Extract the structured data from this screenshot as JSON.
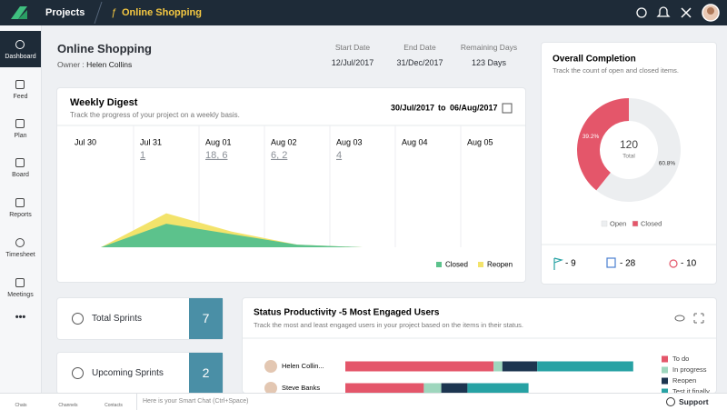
{
  "topbar": {
    "projects": "Projects",
    "project": "Online Shopping"
  },
  "sidebar": {
    "items": [
      "Dashboard",
      "Feed",
      "Plan",
      "Board",
      "Reports",
      "Timesheet",
      "Meetings"
    ],
    "more": "•••"
  },
  "header": {
    "title": "Online Shopping",
    "owner_label": "Owner :",
    "owner": "Helen Collins",
    "stats": [
      {
        "label": "Start Date",
        "value": "12/Jul/2017"
      },
      {
        "label": "End Date",
        "value": "31/Dec/2017"
      },
      {
        "label": "Remaining Days",
        "value": "123 Days"
      }
    ]
  },
  "chart_data": [
    {
      "type": "area",
      "title": "Weekly Digest",
      "subtitle": "Track the progress of your project on a weekly basis.",
      "range_start": "30/Jul/2017",
      "range_to": "to",
      "range_end": "06/Aug/2017",
      "categories": [
        "Jul 30",
        "Jul 31",
        "Aug 01",
        "Aug 02",
        "Aug 03",
        "Aug 04",
        "Aug 05"
      ],
      "day_counts": [
        null,
        "1",
        "18, 6",
        "6, 2",
        "4",
        null,
        null
      ],
      "series": [
        {
          "name": "Closed",
          "color": "#5cc28c",
          "values": [
            0,
            9,
            5,
            1,
            0,
            0,
            0
          ]
        },
        {
          "name": "Reopen",
          "color": "#f3e36b",
          "values": [
            0,
            13,
            6,
            1,
            0,
            0,
            0
          ]
        }
      ],
      "ylim": [
        0,
        40
      ]
    },
    {
      "type": "pie",
      "title": "Overall Completion",
      "subtitle": "Track the count of open and closed items.",
      "categories": [
        "Open",
        "Closed"
      ],
      "values": [
        60.8,
        39.2
      ],
      "value_labels": [
        "60.8%",
        "39.2%"
      ],
      "colors": [
        "#eceef0",
        "#e4566a"
      ],
      "hole": true,
      "center_value": 120,
      "center_label": "Total",
      "summary": [
        "- 9",
        "- 28",
        "- 10"
      ]
    },
    {
      "type": "bar",
      "orientation": "horizontal",
      "stacked": true,
      "title": "Status Productivity -5 Most Engaged Users",
      "subtitle": "Track the most and least engaged users in your project based on the items in their status.",
      "categories": [
        "Helen Collin...",
        "Steve Banks"
      ],
      "series": [
        {
          "name": "To do",
          "color": "#e4566a",
          "values": [
            51,
            27
          ]
        },
        {
          "name": "In progress",
          "color": "#9ed6bd",
          "values": [
            3,
            6
          ]
        },
        {
          "name": "Reopen",
          "color": "#1c3550",
          "values": [
            12,
            9
          ]
        },
        {
          "name": "Test it finally",
          "color": "#27a2a4",
          "values": [
            33,
            21
          ]
        }
      ],
      "xlim": [
        0,
        100
      ]
    }
  ],
  "sprints": [
    {
      "label": "Total Sprints",
      "count": 7
    },
    {
      "label": "Upcoming Sprints",
      "count": 2
    }
  ],
  "bottombar": {
    "items": [
      "Chats",
      "Channels",
      "Contacts"
    ],
    "chat_placeholder": "Here is your Smart Chat (Ctrl+Space)",
    "support": "Support"
  }
}
